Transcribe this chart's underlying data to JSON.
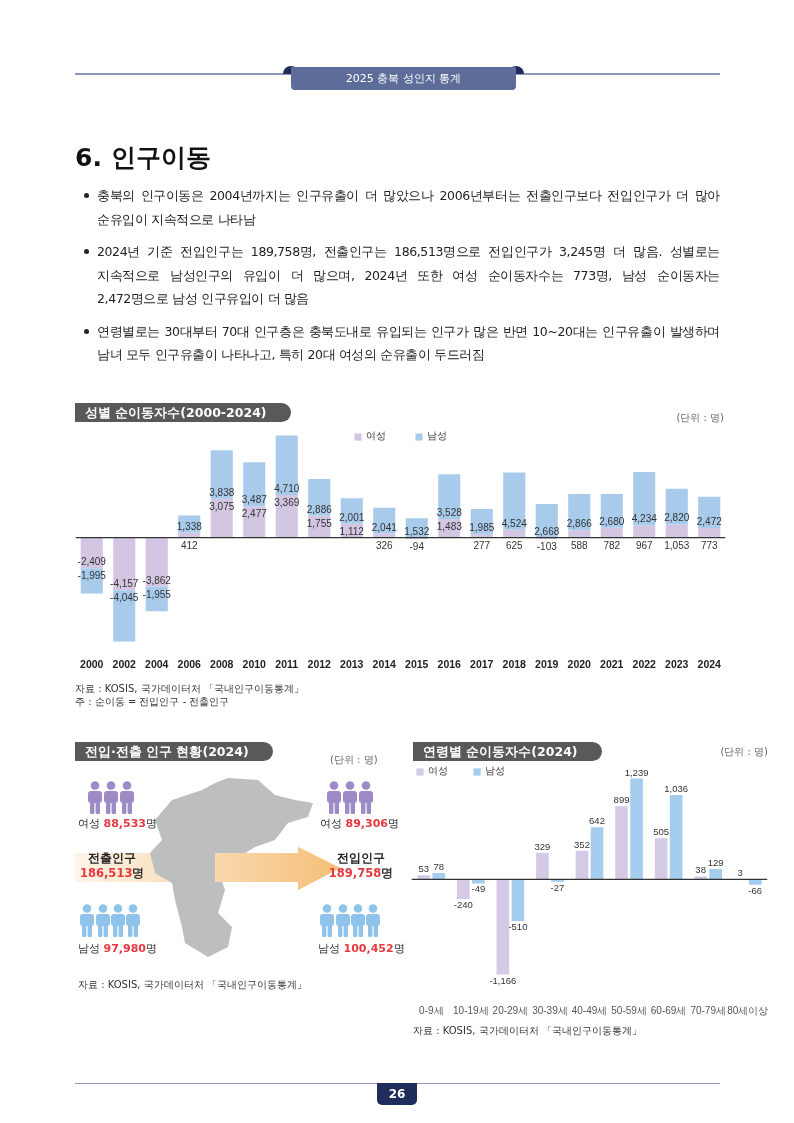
{
  "chart_data": [
    {
      "type": "other",
      "title": "6. 인구이동",
      "annotations": [
        "2025 충북 성인지 통계",
        "충북의 인구이동은 2004년까지는 인구유출이 더 많았으나 2006년부터는 전출인구보다 전입인구가 더 많아 순유입이 지속적으로 나타남",
        "2024년 기준 전입인구는 189,758명, 전출인구는 186,513명으로 전입인구가 3,245명 더 많음. 성별로는 지속적으로 남성인구의 유입이 더 많으며, 2024년 또한 여성 순이동자수는 773명, 남성 순이동자는 2,472명으로 남성 인구유입이 더 많음",
        "연령별로는 30대부터 70대 인구층은 충북도내로 유입되는 인구가 많은 반면 10~20대는 인구유출이 발생하며 남녀 모두 인구유출이 나타나고, 특히 20대 여성의 순유출이 두드러짐",
        "26"
      ]
    },
    {
      "type": "bar",
      "title": "성별 순이동자수(2000-2024)",
      "categories": [
        "2000",
        "2002",
        "2004",
        "2006",
        "2008",
        "2010",
        "2011",
        "2012",
        "2013",
        "2014",
        "2015",
        "2016",
        "2017",
        "2018",
        "2019",
        "2020",
        "2021",
        "2022",
        "2023",
        "2024"
      ],
      "series": [
        {
          "name": "여성",
          "color": "#d3c6e3",
          "values": [
            -2409,
            -4157,
            -3862,
            412,
            3075,
            2477,
            3369,
            1755,
            1112,
            326,
            -94,
            1483,
            277,
            625,
            -103,
            588,
            782,
            967,
            1053,
            773
          ],
          "value_labels": [
            "-2,409",
            "-4,157",
            "-3,862",
            "412",
            "3,075",
            "2,477",
            "3,369",
            "1,755",
            "1,112",
            "326",
            "-94",
            "1,483",
            "277",
            "625",
            "-103",
            "588",
            "782",
            "967",
            "1,053",
            "773"
          ]
        },
        {
          "name": "남성",
          "color": "#a8cbeb",
          "values": [
            -1995,
            -4045,
            -1955,
            1338,
            3838,
            3487,
            4710,
            2886,
            2001,
            2041,
            1532,
            3528,
            1985,
            4524,
            2668,
            2866,
            2680,
            4234,
            2820,
            2472
          ],
          "value_labels": [
            "-1,995",
            "-4,045",
            "-1,955",
            "1,338",
            "3,838",
            "3,487",
            "4,710",
            "2,886",
            "2,001",
            "2,041",
            "1,532",
            "3,528",
            "1,985",
            "4,524",
            "2,668",
            "2,866",
            "2,680",
            "4,234",
            "2,820",
            "2,472"
          ]
        }
      ],
      "stacked": true,
      "tick_labels": "x",
      "legend": "top",
      "annotations": [
        "(단위 : 명)",
        "자료 : KOSIS, 국가데이터처 「국내인구이동통계」",
        "주 : 순이동 = 전입인구 - 전출인구"
      ]
    },
    {
      "type": "other",
      "title": "전입·전출 인구 현황(2024)",
      "annotations": [
        "(단위 : 명)",
        "여성 88,533명",
        "전출인구\n186,513명",
        "남성 97,980명",
        "여성 89,306명",
        "전입인구\n189,758명",
        "남성 100,452명",
        "자료 : KOSIS, 국가데이터처 「국내인구이동통계」"
      ]
    },
    {
      "type": "bar",
      "title": "연령별 순이동자수(2024)",
      "categories": [
        "0-9세",
        "10-19세",
        "20-29세",
        "30-39세",
        "40-49세",
        "50-59세",
        "60-69세",
        "70-79세",
        "80세이상"
      ],
      "series": [
        {
          "name": "여성",
          "color": "#d5cae6",
          "values": [
            53,
            -240,
            -1166,
            329,
            352,
            899,
            505,
            38,
            3
          ],
          "value_labels": [
            "53",
            "-240",
            "-1,166",
            "329",
            "352",
            "899",
            "505",
            "38",
            "3"
          ]
        },
        {
          "name": "남성",
          "color": "#a5cdf0",
          "values": [
            78,
            -49,
            -510,
            -27,
            642,
            1239,
            1036,
            129,
            -66
          ],
          "value_labels": [
            "78",
            "-49",
            "-510",
            "-27",
            "642",
            "1,239",
            "1,036",
            "129",
            "-66"
          ]
        }
      ],
      "tick_labels": "x",
      "legend": "top left",
      "annotations": [
        "(단위 : 명)",
        "자료 : KOSIS, 국가데이터처 「국내인구이동통계」"
      ]
    }
  ]
}
